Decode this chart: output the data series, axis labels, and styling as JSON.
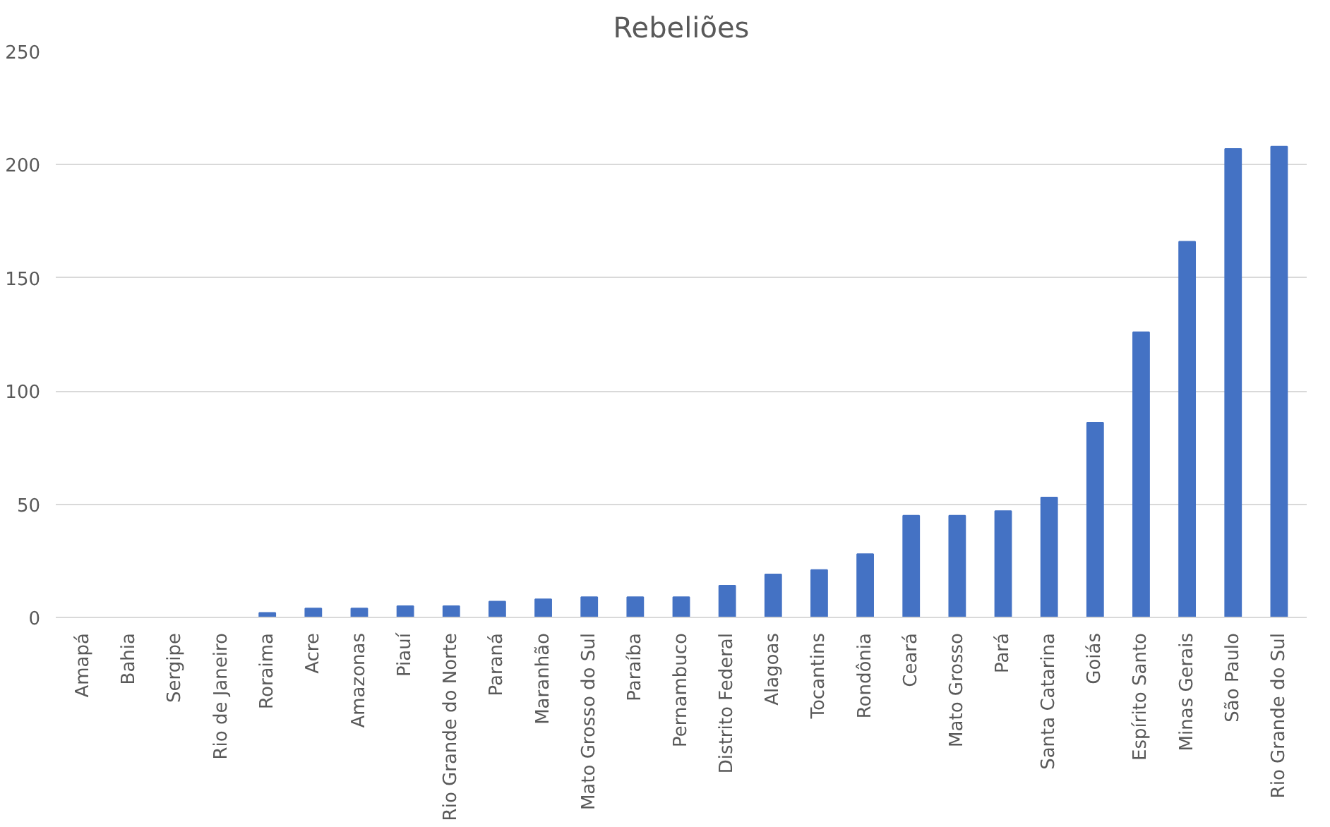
{
  "chart_data": {
    "type": "bar",
    "title": "Rebeliões",
    "categories": [
      "Amapá",
      "Bahia",
      "Sergipe",
      "Rio de Janeiro",
      "Roraima",
      "Acre",
      "Amazonas",
      "Piauí",
      "Rio Grande do Norte",
      "Paraná",
      "Maranhão",
      "Mato Grosso do Sul",
      "Paraíba",
      "Pernambuco",
      "Distrito Federal",
      "Alagoas",
      "Tocantins",
      "Rondônia",
      "Ceará",
      "Mato Grosso",
      "Pará",
      "Santa Catarina",
      "Goiás",
      "Espírito Santo",
      "Minas Gerais",
      "São Paulo",
      "Rio Grande do Sul"
    ],
    "values": [
      0,
      0,
      0,
      0,
      2,
      4,
      4,
      5,
      5,
      7,
      8,
      9,
      9,
      9,
      14,
      19,
      21,
      28,
      45,
      45,
      47,
      53,
      86,
      126,
      166,
      207,
      208
    ],
    "color": "#4472c4",
    "ylim": [
      0,
      250
    ],
    "yticks": [
      0,
      50,
      100,
      150,
      200,
      250
    ],
    "grid": "y"
  }
}
